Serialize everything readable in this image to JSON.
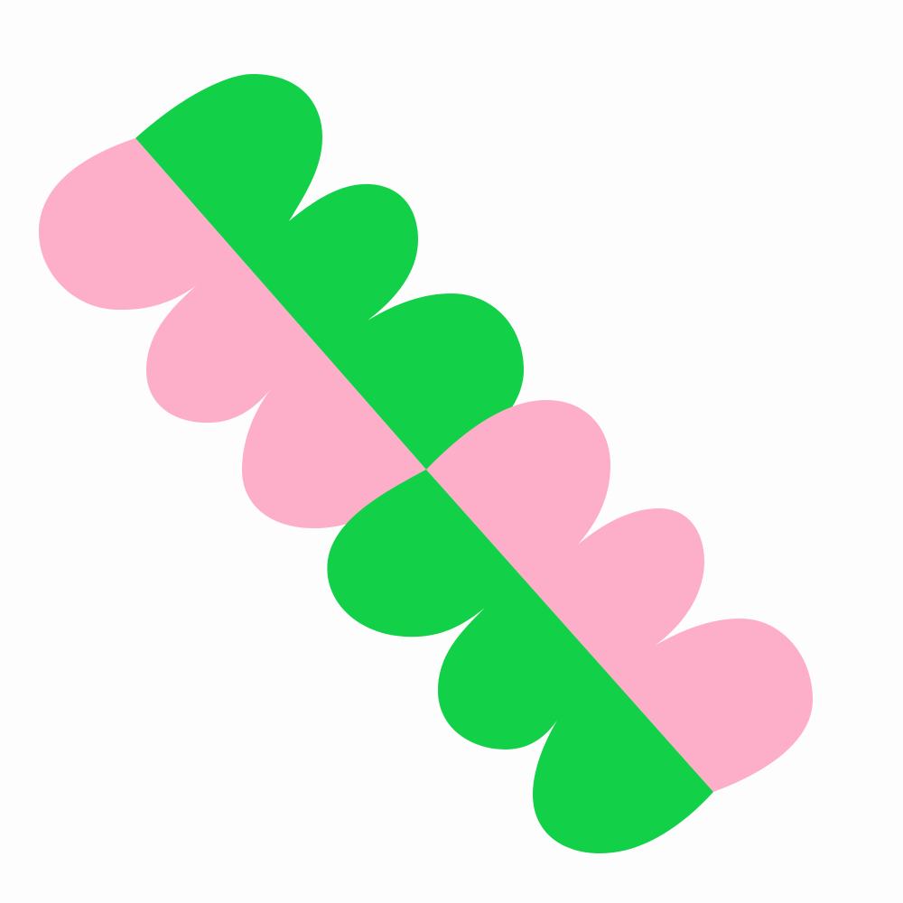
{
  "artwork": {
    "background_color": "#fdfdfd",
    "colors": {
      "green": "#12d048",
      "pink": "#fdaec8"
    },
    "shapes": [
      {
        "name": "upper-green-scalloped-shape",
        "color_key": "green",
        "lobes": 3
      },
      {
        "name": "upper-pink-scalloped-shape",
        "color_key": "pink",
        "lobes": 3
      },
      {
        "name": "lower-pink-scalloped-shape",
        "color_key": "pink",
        "lobes": 3
      },
      {
        "name": "lower-green-scalloped-shape",
        "color_key": "green",
        "lobes": 3
      }
    ]
  }
}
